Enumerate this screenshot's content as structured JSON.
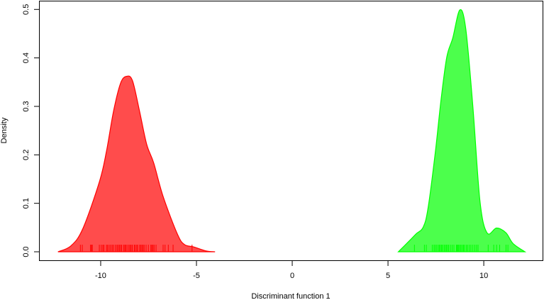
{
  "chart_data": {
    "type": "area",
    "title": "",
    "xlabel": "Discriminant function 1",
    "ylabel": "Density",
    "xlim": [
      -13.22,
      13.07
    ],
    "ylim": [
      -0.019,
      0.518
    ],
    "xticks": [
      -10,
      -5,
      0,
      5,
      10
    ],
    "xtick_labels": [
      "-10",
      "-5",
      "0",
      "5",
      "10"
    ],
    "yticks": [
      0,
      0.1,
      0.2,
      0.3,
      0.4,
      0.5
    ],
    "ytick_labels": [
      "0.0",
      "0.1",
      "0.2",
      "0.3",
      "0.4",
      "0.5"
    ],
    "grid": false,
    "series": [
      {
        "color": "#ff0000",
        "fill": "rgba(255,0,0,0.7)",
        "x": [
          -12.23,
          -11.56,
          -10.94,
          -10.07,
          -9.7,
          -9.33,
          -8.96,
          -8.65,
          -8.34,
          -7.97,
          -7.6,
          -7.23,
          -6.74,
          -6.0,
          -5.63,
          -5.14,
          -4.52,
          -4.03
        ],
        "y": [
          0,
          0.012,
          0.047,
          0.144,
          0.207,
          0.29,
          0.348,
          0.362,
          0.353,
          0.29,
          0.222,
          0.183,
          0.114,
          0.037,
          0.015,
          0.01,
          0.002,
          0
        ],
        "rug": [
          -11.06,
          -10.96,
          -10.53,
          -10.48,
          -10.44,
          -10.07,
          -9.97,
          -9.89,
          -9.83,
          -9.7,
          -9.64,
          -9.56,
          -9.48,
          -9.4,
          -9.33,
          -9.23,
          -9.15,
          -9.09,
          -9.02,
          -8.96,
          -8.9,
          -8.8,
          -8.74,
          -8.69,
          -8.62,
          -8.53,
          -8.47,
          -8.41,
          -8.35,
          -8.25,
          -8.2,
          -8.12,
          -8.07,
          -7.97,
          -7.91,
          -7.85,
          -7.79,
          -7.73,
          -7.63,
          -7.51,
          -7.38,
          -7.33,
          -7.27,
          -7.21,
          -7.11,
          -6.74,
          -6.64,
          -6.47,
          -6.22,
          -5.23
        ]
      },
      {
        "color": "#00ff00",
        "fill": "rgba(0,255,0,0.7)",
        "x": [
          5.54,
          6.1,
          6.47,
          6.84,
          7.09,
          7.46,
          7.77,
          8.07,
          8.38,
          8.75,
          9.06,
          9.43,
          9.8,
          10.17,
          10.67,
          11.16,
          11.53,
          12.15
        ],
        "y": [
          0,
          0.022,
          0.037,
          0.051,
          0.09,
          0.202,
          0.314,
          0.402,
          0.441,
          0.499,
          0.46,
          0.3,
          0.105,
          0.039,
          0.049,
          0.039,
          0.017,
          0
        ],
        "rug": [
          6.38,
          6.9,
          7.0,
          7.31,
          7.4,
          7.46,
          7.54,
          7.62,
          7.68,
          7.74,
          7.8,
          7.85,
          7.93,
          7.99,
          8.05,
          8.11,
          8.17,
          8.26,
          8.35,
          8.44,
          8.57,
          8.6,
          8.65,
          8.69,
          8.75,
          8.81,
          8.88,
          8.94,
          9.0,
          9.09,
          9.16,
          9.25,
          9.33,
          9.43,
          9.53,
          9.62,
          9.7,
          10.23,
          10.52,
          10.67,
          10.83,
          11.16,
          11.26
        ]
      }
    ]
  }
}
